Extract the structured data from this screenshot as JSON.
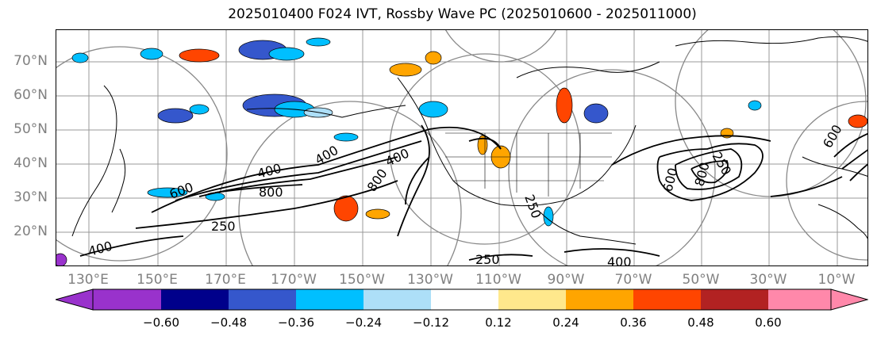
{
  "title": "2025010400 F024 IVT, Rossby Wave PC (2025010600 - 2025011000)",
  "lat_labels": [
    "70°N",
    "60°N",
    "50°N",
    "40°N",
    "30°N",
    "20°N"
  ],
  "lon_labels": [
    "130°E",
    "150°E",
    "170°E",
    "170°W",
    "150°W",
    "130°W",
    "110°W",
    "90°W",
    "70°W",
    "50°W",
    "30°W",
    "10°W"
  ],
  "contour_labels": [
    "400",
    "600",
    "800",
    "250",
    "400",
    "400",
    "800",
    "250",
    "400",
    "600",
    "800",
    "250",
    "600",
    "250",
    "400"
  ],
  "colorbar": {
    "colors": [
      "#9932CC",
      "#00008B",
      "#3557CC",
      "#00BFFF",
      "#ADDFF8",
      "#FFFFFF",
      "#FFE88C",
      "#FFA500",
      "#FF4500",
      "#B22222",
      "#FF88AA"
    ],
    "tick_labels": [
      "−0.60",
      "−0.48",
      "−0.36",
      "−0.24",
      "−0.12",
      "0.12",
      "0.24",
      "0.36",
      "0.48",
      "0.60"
    ]
  }
}
